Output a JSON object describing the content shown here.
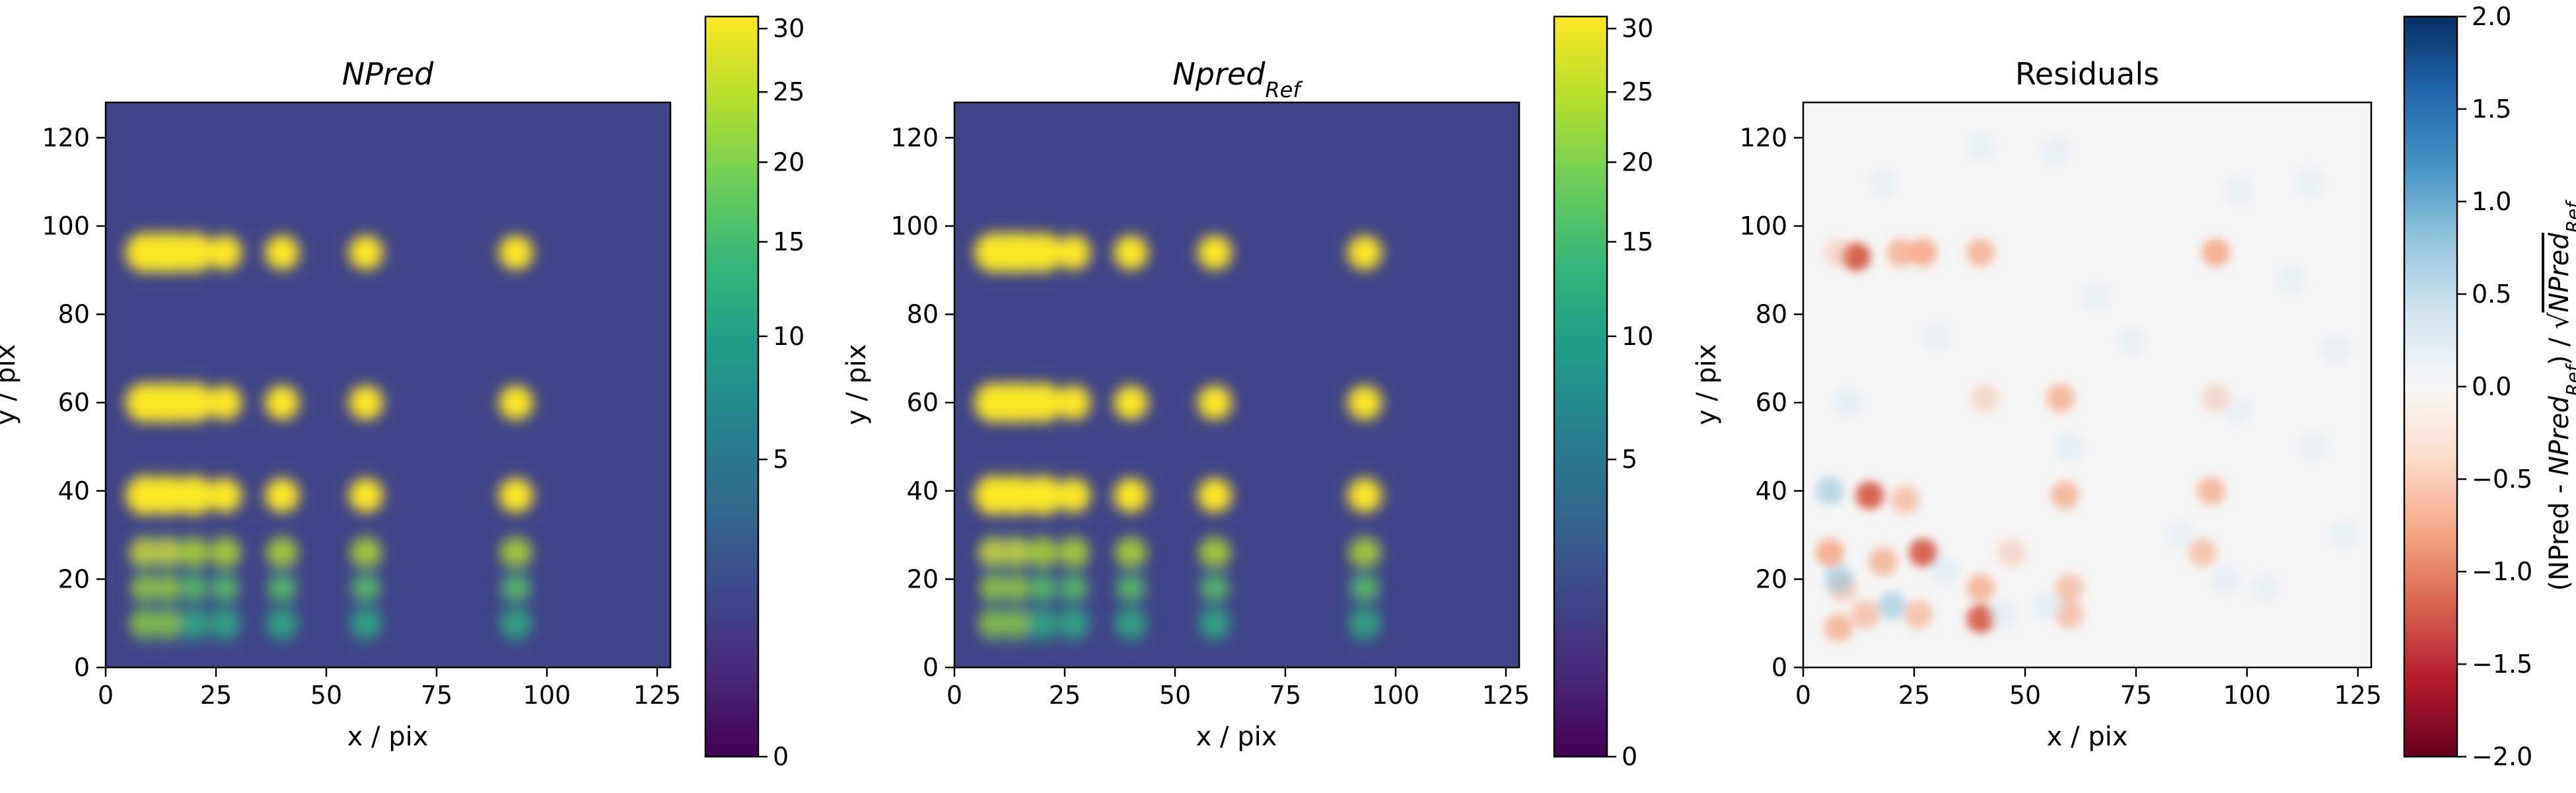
{
  "colors": {
    "background": "#414487",
    "viridis": [
      "#440154",
      "#482878",
      "#3e4989",
      "#31688e",
      "#26828e",
      "#1f9e89",
      "#35b779",
      "#6ece58",
      "#b5de2b",
      "#fde725"
    ],
    "rdbu": [
      "#67001f",
      "#b2182b",
      "#d6604d",
      "#f4a582",
      "#fddbc7",
      "#f7f7f7",
      "#d1e5f0",
      "#92c5de",
      "#4393c3",
      "#2166ac",
      "#053061"
    ]
  },
  "chart_data": [
    {
      "type": "heatmap",
      "title_main": "NPred",
      "title_sub": "",
      "xlabel": "x / pix",
      "ylabel": "y / pix",
      "xlim": [
        0,
        128
      ],
      "ylim": [
        0,
        128
      ],
      "xticks": [
        "0",
        "25",
        "50",
        "75",
        "100",
        "125"
      ],
      "yticks": [
        "0",
        "20",
        "40",
        "60",
        "80",
        "100",
        "120"
      ],
      "colorbar": {
        "scale": "sqrt",
        "range": [
          0,
          31
        ],
        "ticks": [
          "0",
          "5",
          "10",
          "15",
          "20",
          "25",
          "30"
        ],
        "label": ""
      },
      "sources": {
        "x": [
          9,
          14,
          20,
          27,
          40,
          59,
          93
        ],
        "y": [
          10,
          18,
          26,
          39,
          60,
          94
        ]
      }
    },
    {
      "type": "heatmap",
      "title_main": "Npred",
      "title_sub": "Ref",
      "xlabel": "x / pix",
      "ylabel": "y / pix",
      "xlim": [
        0,
        128
      ],
      "ylim": [
        0,
        128
      ],
      "xticks": [
        "0",
        "25",
        "50",
        "75",
        "100",
        "125"
      ],
      "yticks": [
        "0",
        "20",
        "40",
        "60",
        "80",
        "100",
        "120"
      ],
      "colorbar": {
        "scale": "sqrt",
        "range": [
          0,
          31
        ],
        "ticks": [
          "0",
          "5",
          "10",
          "15",
          "20",
          "25",
          "30"
        ],
        "label": ""
      },
      "sources": {
        "x": [
          9,
          14,
          20,
          27,
          40,
          59,
          93
        ],
        "y": [
          10,
          18,
          26,
          39,
          60,
          94
        ]
      }
    },
    {
      "type": "heatmap",
      "title_main": "Residuals",
      "title_sub": "",
      "xlabel": "x / pix",
      "ylabel": "y / pix",
      "xlim": [
        0,
        128
      ],
      "ylim": [
        0,
        128
      ],
      "xticks": [
        "0",
        "25",
        "50",
        "75",
        "100",
        "125"
      ],
      "yticks": [
        "0",
        "20",
        "40",
        "60",
        "80",
        "100",
        "120"
      ],
      "colorbar": {
        "scale": "linear",
        "range": [
          -2.0,
          2.0
        ],
        "ticks": [
          "−2.0",
          "−1.5",
          "−1.0",
          "−0.5",
          "0.0",
          "0.5",
          "1.0",
          "1.5",
          "2.0"
        ],
        "label": "(NPred - NPred_Ref) / √NPred_Ref"
      },
      "residual_spots": [
        {
          "x": 12,
          "y": 93,
          "v": -0.9
        },
        {
          "x": 22,
          "y": 94,
          "v": -0.6
        },
        {
          "x": 27,
          "y": 94,
          "v": -0.7
        },
        {
          "x": 40,
          "y": 94,
          "v": -0.6
        },
        {
          "x": 93,
          "y": 94,
          "v": -0.7
        },
        {
          "x": 8,
          "y": 94,
          "v": -0.3
        },
        {
          "x": 58,
          "y": 61,
          "v": -0.6
        },
        {
          "x": 41,
          "y": 61,
          "v": -0.3
        },
        {
          "x": 93,
          "y": 61,
          "v": -0.3
        },
        {
          "x": 15,
          "y": 39,
          "v": -0.8
        },
        {
          "x": 23,
          "y": 38,
          "v": -0.5
        },
        {
          "x": 59,
          "y": 39,
          "v": -0.6
        },
        {
          "x": 92,
          "y": 40,
          "v": -0.6
        },
        {
          "x": 6,
          "y": 26,
          "v": -0.7
        },
        {
          "x": 18,
          "y": 24,
          "v": -0.6
        },
        {
          "x": 27,
          "y": 26,
          "v": -0.8
        },
        {
          "x": 40,
          "y": 18,
          "v": -0.6
        },
        {
          "x": 40,
          "y": 11,
          "v": -0.8
        },
        {
          "x": 60,
          "y": 18,
          "v": -0.5
        },
        {
          "x": 60,
          "y": 12,
          "v": -0.5
        },
        {
          "x": 90,
          "y": 26,
          "v": -0.5
        },
        {
          "x": 8,
          "y": 9,
          "v": -0.6
        },
        {
          "x": 14,
          "y": 12,
          "v": -0.5
        },
        {
          "x": 26,
          "y": 12,
          "v": -0.5
        },
        {
          "x": 9,
          "y": 18,
          "v": -0.4
        },
        {
          "x": 47,
          "y": 26,
          "v": -0.3
        },
        {
          "x": 6,
          "y": 40,
          "v": 0.5
        },
        {
          "x": 8,
          "y": 20,
          "v": 0.5
        },
        {
          "x": 10,
          "y": 60,
          "v": 0.4
        },
        {
          "x": 20,
          "y": 14,
          "v": 0.5
        },
        {
          "x": 32,
          "y": 22,
          "v": 0.4
        },
        {
          "x": 45,
          "y": 12,
          "v": 0.4
        },
        {
          "x": 55,
          "y": 14,
          "v": 0.4
        },
        {
          "x": 95,
          "y": 20,
          "v": 0.4
        },
        {
          "x": 60,
          "y": 50,
          "v": 0.4
        },
        {
          "x": 85,
          "y": 30,
          "v": 0.3
        },
        {
          "x": 74,
          "y": 74,
          "v": 0.3
        },
        {
          "x": 98,
          "y": 58,
          "v": 0.3
        },
        {
          "x": 115,
          "y": 50,
          "v": 0.3
        },
        {
          "x": 120,
          "y": 72,
          "v": 0.35
        },
        {
          "x": 110,
          "y": 88,
          "v": 0.3
        },
        {
          "x": 98,
          "y": 108,
          "v": 0.3
        },
        {
          "x": 57,
          "y": 117,
          "v": 0.35
        },
        {
          "x": 30,
          "y": 75,
          "v": 0.3
        },
        {
          "x": 66,
          "y": 84,
          "v": 0.3
        },
        {
          "x": 104,
          "y": 18,
          "v": 0.3
        },
        {
          "x": 18,
          "y": 110,
          "v": 0.3
        },
        {
          "x": 122,
          "y": 30,
          "v": 0.3
        },
        {
          "x": 40,
          "y": 118,
          "v": 0.3
        },
        {
          "x": 114,
          "y": 110,
          "v": 0.3
        }
      ]
    }
  ]
}
